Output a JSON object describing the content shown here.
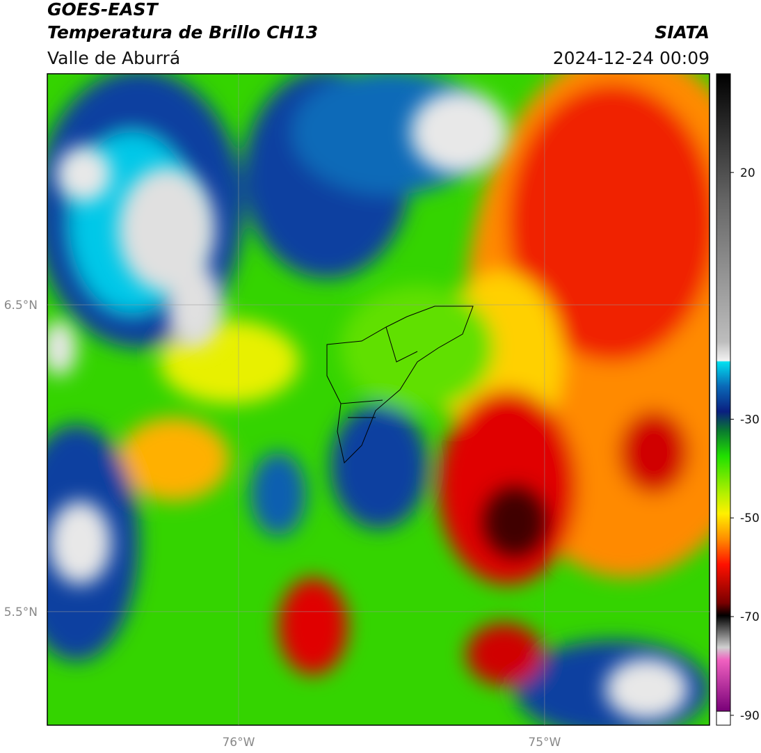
{
  "header": {
    "title": "GOES-EAST",
    "subtitle": "Temperatura de Brillo CH13",
    "region": "Valle de Aburrá",
    "source": "SIATA",
    "timestamp": "2024-12-24 00:09"
  },
  "map": {
    "latlim": [
      5.13,
      7.253
    ],
    "lonlim": [
      -76.625,
      -74.461
    ],
    "lat_ticks": [
      {
        "value": 6.5,
        "label": "6.5°N"
      },
      {
        "value": 5.5,
        "label": "5.5°N"
      }
    ],
    "lon_ticks": [
      {
        "value": -76,
        "label": "76°W"
      },
      {
        "value": -75,
        "label": "75°W"
      }
    ]
  },
  "colorbar": {
    "lim": [
      -92,
      40
    ],
    "ticks": [
      20,
      -30,
      -50,
      -70,
      -90
    ]
  }
}
